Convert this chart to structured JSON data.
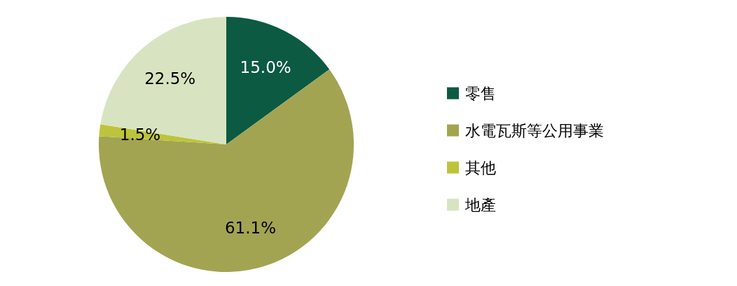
{
  "chart_data": {
    "type": "pie",
    "categories": [
      "零售",
      "水電瓦斯等公用事業",
      "其他",
      "地產"
    ],
    "values": [
      15.0,
      61.1,
      1.5,
      22.5
    ],
    "value_labels": [
      "15.0%",
      "61.1%",
      "1.5%",
      "22.5%"
    ],
    "colors": [
      "#0b5a41",
      "#a2a452",
      "#bdc43b",
      "#d8e4c1"
    ],
    "legend": "right"
  }
}
